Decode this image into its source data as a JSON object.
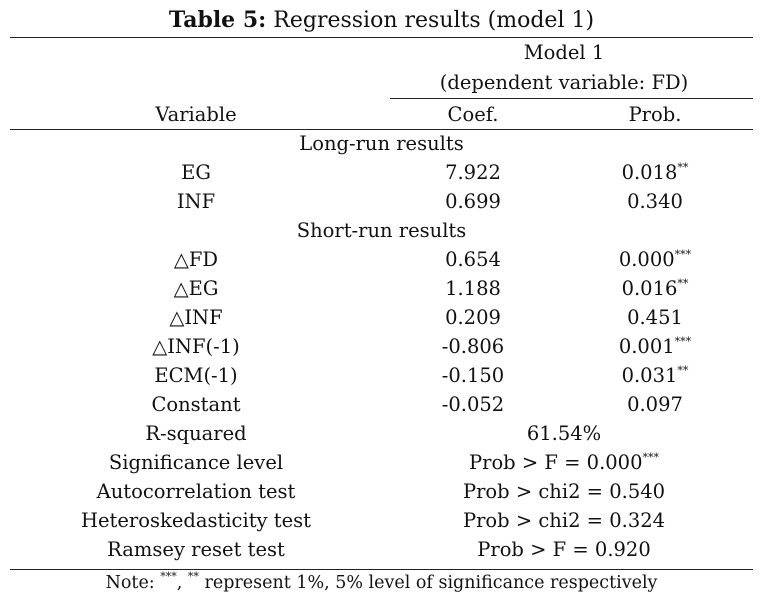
{
  "caption": {
    "label": "Table 5:",
    "text": " Regression results (model 1)"
  },
  "header": {
    "model": "Model 1",
    "dependent": "(dependent variable: FD)",
    "col_variable": "Variable",
    "col_coef": "Coef.",
    "col_prob": "Prob."
  },
  "sections": {
    "long_run": "Long-run results",
    "short_run": "Short-run results"
  },
  "long_run_rows": [
    {
      "variable": "EG",
      "coef": "7.922",
      "prob": "0.018",
      "stars": "**"
    },
    {
      "variable": "INF",
      "coef": "0.699",
      "prob": "0.340",
      "stars": ""
    }
  ],
  "short_run_rows": [
    {
      "variable": "△FD",
      "coef": "0.654",
      "prob": "0.000",
      "stars": "***"
    },
    {
      "variable": "△EG",
      "coef": "1.188",
      "prob": "0.016",
      "stars": "**"
    },
    {
      "variable": "△INF",
      "coef": "0.209",
      "prob": "0.451",
      "stars": ""
    },
    {
      "variable": "△INF(-1)",
      "coef": "-0.806",
      "prob": "0.001",
      "stars": "***"
    },
    {
      "variable": "ECM(-1)",
      "coef": "-0.150",
      "prob": "0.031",
      "stars": "**"
    },
    {
      "variable": "Constant",
      "coef": "-0.052",
      "prob": "0.097",
      "stars": ""
    }
  ],
  "stats_rows": [
    {
      "label": "R-squared",
      "value": "61.54%",
      "stars": ""
    },
    {
      "label": "Significance level",
      "value": "Prob > F = 0.000",
      "stars": "***"
    },
    {
      "label": "Autocorrelation test",
      "value": "Prob > chi2 = 0.540",
      "stars": ""
    },
    {
      "label": "Heteroskedasticity test",
      "value": "Prob > chi2 = 0.324",
      "stars": ""
    },
    {
      "label": "Ramsey reset test",
      "value": "Prob > F = 0.920",
      "stars": ""
    }
  ],
  "note": {
    "prefix": "Note: ",
    "stars1": "***",
    "mid": ", ",
    "stars2": "**",
    "suffix": " represent 1%, 5% level of significance respectively"
  }
}
